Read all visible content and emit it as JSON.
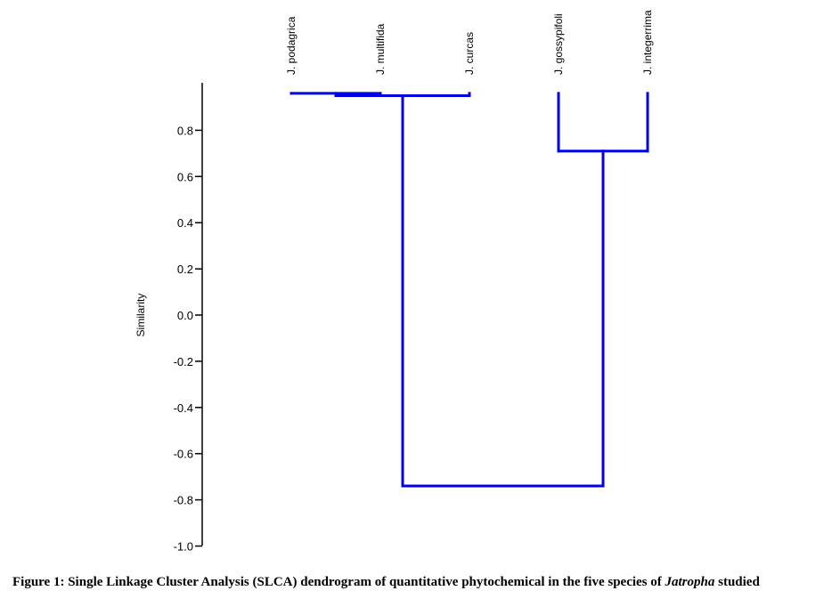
{
  "chart_data": {
    "type": "dendrogram",
    "method": "Single Linkage Cluster Analysis",
    "ylabel": "Similarity",
    "ylim": [
      -1.0,
      0.96
    ],
    "yticks": [
      {
        "value": 0.8,
        "label": "0.8"
      },
      {
        "value": 0.6,
        "label": "0.6"
      },
      {
        "value": 0.4,
        "label": "0.4"
      },
      {
        "value": 0.2,
        "label": "0.2"
      },
      {
        "value": 0.0,
        "label": "0.0"
      },
      {
        "value": -0.2,
        "label": "-0.2"
      },
      {
        "value": -0.4,
        "label": "-0.4"
      },
      {
        "value": -0.6,
        "label": "-0.6"
      },
      {
        "value": -0.8,
        "label": "-0.8"
      },
      {
        "value": -1.0,
        "label": "-1.0"
      }
    ],
    "leaves": [
      "J. podagrica",
      "J. multifida",
      "J. curcas",
      "J. gossypifoli",
      "J. integerrima"
    ],
    "merges": [
      {
        "a": "J. podagrica",
        "b": "J. multifida",
        "similarity": 0.96
      },
      {
        "a": "cluster1",
        "b": "J. curcas",
        "similarity": 0.95
      },
      {
        "a": "J. gossypifoli",
        "b": "J. integerrima",
        "similarity": 0.71
      },
      {
        "a": "cluster2",
        "b": "cluster3",
        "similarity": -0.74
      }
    ],
    "line_color": "#0000e6"
  },
  "caption": {
    "prefix": "Figure 1: Single Linkage Cluster Analysis (SLCA) dendrogram of quantitative phytochemical in the five species of ",
    "genus": "Jatropha",
    "suffix": " studied"
  }
}
